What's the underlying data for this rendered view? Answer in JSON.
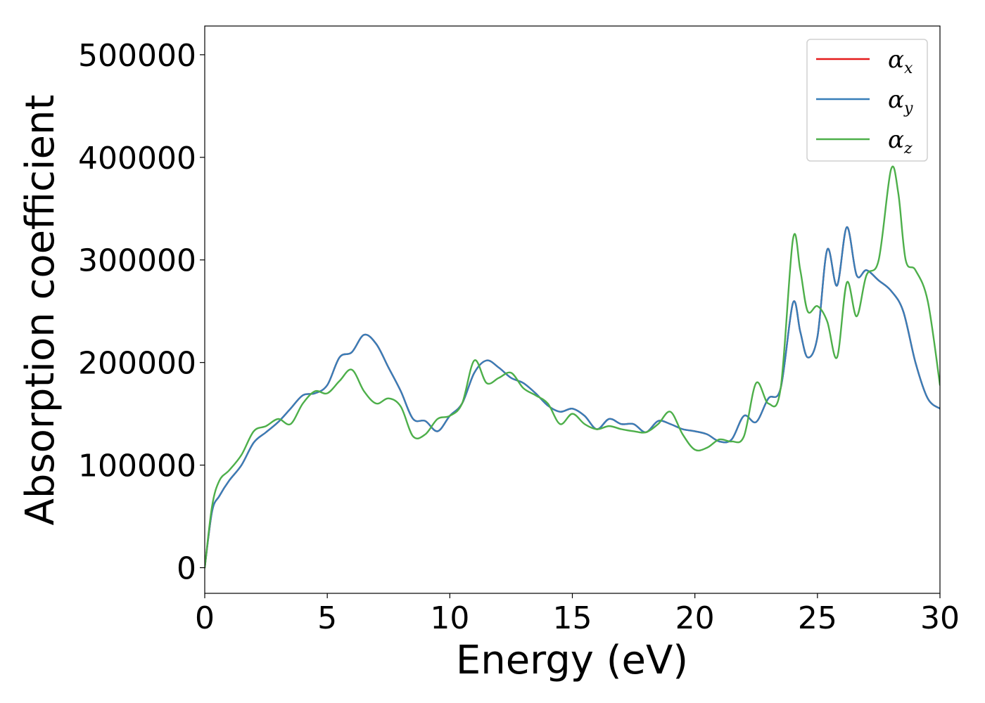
{
  "chart_data": {
    "type": "line",
    "xlabel": "Energy (eV)",
    "ylabel": "Absorption coefficient",
    "xlim": [
      0,
      30
    ],
    "ylim": [
      -25000,
      528000
    ],
    "xticks": [
      0,
      5,
      10,
      15,
      20,
      25,
      30
    ],
    "yticks": [
      0,
      100000,
      200000,
      300000,
      400000,
      500000
    ],
    "grid": false,
    "legend_position": "top-right",
    "series": [
      {
        "name": "αx",
        "symbol": "α",
        "subscript": "x",
        "color": "#e41a1c",
        "x": [
          0,
          0.3,
          0.6,
          1.0,
          1.5,
          2.0,
          2.5,
          3.0,
          3.5,
          4.0,
          4.5,
          5.0,
          5.5,
          6.0,
          6.5,
          7.0,
          7.5,
          8.0,
          8.5,
          9.0,
          9.5,
          10.0,
          10.5,
          11.0,
          11.5,
          12.0,
          12.5,
          13.0,
          13.5,
          14.0,
          14.5,
          15.0,
          15.5,
          16.0,
          16.5,
          17.0,
          17.5,
          18.0,
          18.5,
          19.0,
          19.5,
          20.0,
          20.5,
          21.0,
          21.5,
          22.0,
          22.5,
          23.0,
          23.5,
          24.0,
          24.3,
          24.6,
          25.0,
          25.4,
          25.8,
          26.2,
          26.6,
          27.0,
          27.5,
          28.0,
          28.5,
          29.0,
          29.5,
          30.0
        ],
        "y": [
          0,
          55000,
          70000,
          85000,
          100000,
          122000,
          132000,
          142000,
          155000,
          168000,
          170000,
          178000,
          205000,
          210000,
          227000,
          218000,
          195000,
          172000,
          145000,
          143000,
          133000,
          148000,
          160000,
          190000,
          202000,
          195000,
          185000,
          180000,
          170000,
          158000,
          152000,
          155000,
          148000,
          135000,
          145000,
          140000,
          140000,
          132000,
          143000,
          140000,
          135000,
          133000,
          130000,
          123000,
          125000,
          148000,
          142000,
          165000,
          175000,
          258000,
          230000,
          205000,
          225000,
          310000,
          275000,
          332000,
          285000,
          290000,
          280000,
          270000,
          250000,
          200000,
          165000,
          155000
        ]
      },
      {
        "name": "αy",
        "symbol": "α",
        "subscript": "y",
        "color": "#377eb8",
        "x": [
          0,
          0.3,
          0.6,
          1.0,
          1.5,
          2.0,
          2.5,
          3.0,
          3.5,
          4.0,
          4.5,
          5.0,
          5.5,
          6.0,
          6.5,
          7.0,
          7.5,
          8.0,
          8.5,
          9.0,
          9.5,
          10.0,
          10.5,
          11.0,
          11.5,
          12.0,
          12.5,
          13.0,
          13.5,
          14.0,
          14.5,
          15.0,
          15.5,
          16.0,
          16.5,
          17.0,
          17.5,
          18.0,
          18.5,
          19.0,
          19.5,
          20.0,
          20.5,
          21.0,
          21.5,
          22.0,
          22.5,
          23.0,
          23.5,
          24.0,
          24.3,
          24.6,
          25.0,
          25.4,
          25.8,
          26.2,
          26.6,
          27.0,
          27.5,
          28.0,
          28.5,
          29.0,
          29.5,
          30.0
        ],
        "y": [
          0,
          55000,
          70000,
          85000,
          100000,
          122000,
          132000,
          142000,
          155000,
          168000,
          170000,
          178000,
          205000,
          210000,
          227000,
          218000,
          195000,
          172000,
          145000,
          143000,
          133000,
          148000,
          160000,
          190000,
          202000,
          195000,
          185000,
          180000,
          170000,
          158000,
          152000,
          155000,
          148000,
          135000,
          145000,
          140000,
          140000,
          132000,
          143000,
          140000,
          135000,
          133000,
          130000,
          123000,
          125000,
          148000,
          142000,
          165000,
          175000,
          258000,
          230000,
          205000,
          225000,
          310000,
          275000,
          332000,
          285000,
          290000,
          280000,
          270000,
          250000,
          200000,
          165000,
          155000
        ]
      },
      {
        "name": "αz",
        "symbol": "α",
        "subscript": "z",
        "color": "#4daf4a",
        "x": [
          0,
          0.3,
          0.6,
          1.0,
          1.5,
          2.0,
          2.5,
          3.0,
          3.5,
          4.0,
          4.5,
          5.0,
          5.5,
          6.0,
          6.5,
          7.0,
          7.5,
          8.0,
          8.5,
          9.0,
          9.5,
          10.0,
          10.5,
          11.0,
          11.5,
          12.0,
          12.5,
          13.0,
          13.5,
          14.0,
          14.5,
          15.0,
          15.5,
          16.0,
          16.5,
          17.0,
          17.5,
          18.0,
          18.5,
          19.0,
          19.5,
          20.0,
          20.5,
          21.0,
          21.5,
          22.0,
          22.5,
          23.0,
          23.5,
          24.0,
          24.3,
          24.6,
          25.0,
          25.4,
          25.8,
          26.2,
          26.6,
          27.0,
          27.5,
          28.0,
          28.3,
          28.6,
          29.0,
          29.5,
          30.0
        ],
        "y": [
          0,
          60000,
          85000,
          95000,
          110000,
          133000,
          138000,
          145000,
          140000,
          160000,
          172000,
          170000,
          182000,
          193000,
          172000,
          160000,
          165000,
          157000,
          128000,
          130000,
          145000,
          148000,
          160000,
          202000,
          180000,
          185000,
          190000,
          175000,
          168000,
          160000,
          140000,
          150000,
          140000,
          135000,
          138000,
          135000,
          133000,
          132000,
          140000,
          152000,
          130000,
          115000,
          117000,
          125000,
          123000,
          128000,
          180000,
          160000,
          175000,
          320000,
          290000,
          250000,
          255000,
          240000,
          205000,
          278000,
          245000,
          285000,
          300000,
          388000,
          365000,
          300000,
          290000,
          260000,
          178000
        ]
      }
    ]
  }
}
